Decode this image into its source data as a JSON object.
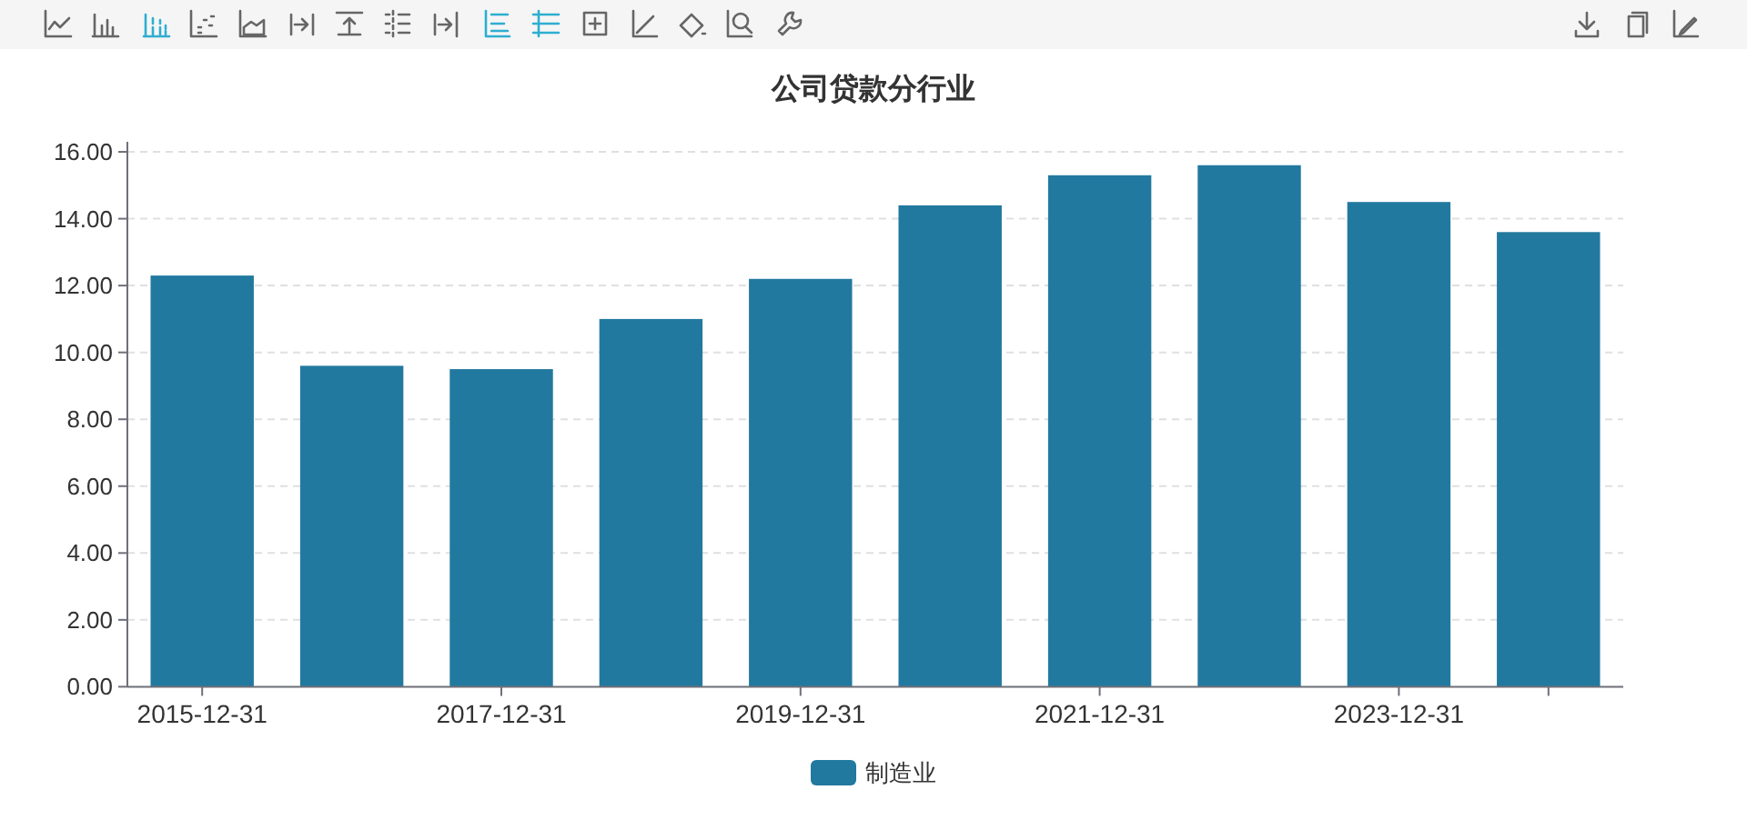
{
  "chart_data": {
    "type": "bar",
    "title": "公司贷款分行业",
    "categories": [
      "2015-12-31",
      null,
      "2017-12-31",
      null,
      "2019-12-31",
      null,
      "2021-12-31",
      null,
      "2023-12-31",
      null
    ],
    "series": [
      {
        "name": "制造业",
        "color": "#22799f",
        "values": [
          12.3,
          9.6,
          9.5,
          11.0,
          12.2,
          14.4,
          15.3,
          15.6,
          14.5,
          13.6
        ]
      }
    ],
    "ylim": [
      0,
      16.3
    ],
    "yticks": [
      {
        "value": 0,
        "label": "0.00"
      },
      {
        "value": 2,
        "label": "2.00"
      },
      {
        "value": 4,
        "label": "4.00"
      },
      {
        "value": 6,
        "label": "6.00"
      },
      {
        "value": 8,
        "label": "8.00"
      },
      {
        "value": 10,
        "label": "10.00"
      },
      {
        "value": 12,
        "label": "12.00"
      },
      {
        "value": 14,
        "label": "14.00"
      },
      {
        "value": 16,
        "label": "16.00"
      }
    ],
    "grid": "y",
    "legend": "bottom"
  }
}
